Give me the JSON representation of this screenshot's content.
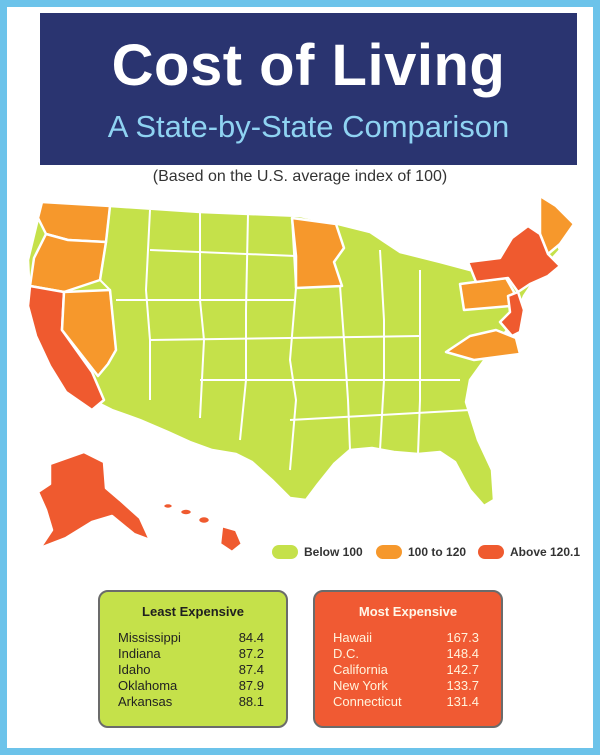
{
  "header": {
    "title": "Cost of Living",
    "subtitle": "A State-by-State Comparison"
  },
  "note": "(Based on the U.S. average index of 100)",
  "colors": {
    "below_100": "#c5e14a",
    "range_100_120": "#f6982c",
    "above_120": "#ef5a2f",
    "header_bg": "#2a3470",
    "frame": "#6cc3ea"
  },
  "legend": [
    {
      "label": "Below 100",
      "color": "#c5e14a"
    },
    {
      "label": "100 to 120",
      "color": "#f6982c"
    },
    {
      "label": "Above 120.1",
      "color": "#ef5a2f"
    }
  ],
  "least_expensive": {
    "title": "Least Expensive",
    "rows": [
      {
        "state": "Mississippi",
        "value": "84.4"
      },
      {
        "state": "Indiana",
        "value": "87.2"
      },
      {
        "state": "Idaho",
        "value": "87.4"
      },
      {
        "state": "Oklahoma",
        "value": "87.9"
      },
      {
        "state": "Arkansas",
        "value": "88.1"
      }
    ]
  },
  "most_expensive": {
    "title": "Most Expensive",
    "rows": [
      {
        "state": "Hawaii",
        "value": "167.3"
      },
      {
        "state": "D.C.",
        "value": "148.4"
      },
      {
        "state": "California",
        "value": "142.7"
      },
      {
        "state": "New York",
        "value": "133.7"
      },
      {
        "state": "Connecticut",
        "value": "131.4"
      }
    ]
  }
}
